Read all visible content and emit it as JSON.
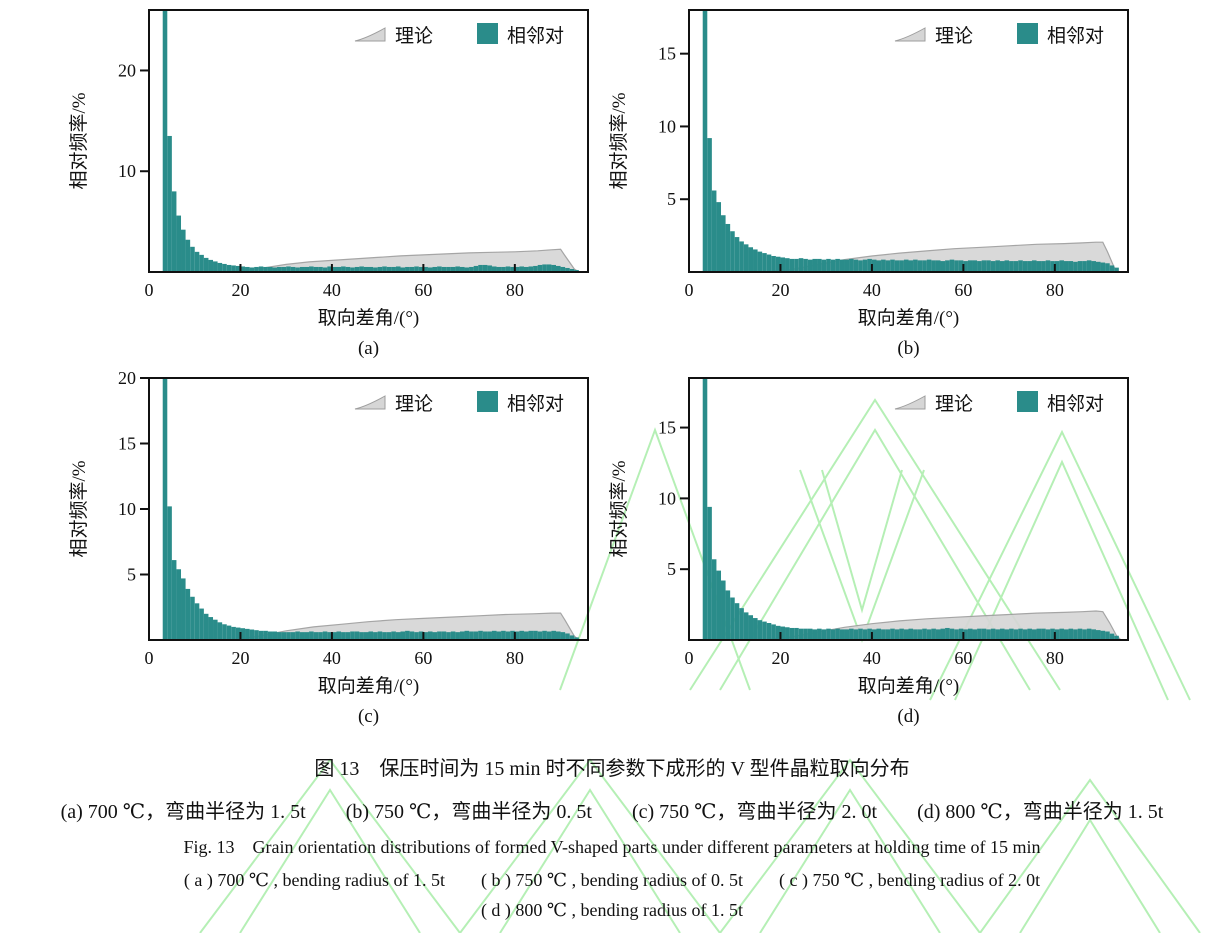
{
  "figure": {
    "caption_cn_title": "图 13　保压时间为 15 min 时不同参数下成形的 V 型件晶粒取向分布",
    "caption_cn_sub": "(a) 700 ℃，弯曲半径为 1. 5t　　(b) 750 ℃，弯曲半径为 0. 5t　　(c) 750 ℃，弯曲半径为 2. 0t　　(d) 800 ℃，弯曲半径为 1. 5t",
    "caption_en_title": "Fig. 13　Grain orientation distributions of formed V-shaped parts under different parameters at holding time of 15 min",
    "caption_en_sub1": "( a )  700 ℃ , bending radius of 1. 5t　　( b )  750 ℃ , bending radius of 0. 5t　　( c )  750 ℃ , bending radius of 2. 0t",
    "caption_en_sub2": "( d )  800 ℃ , bending radius of 1. 5t"
  },
  "colors": {
    "bar": "#2a8c8a",
    "theory_fill": "#d6d6d6",
    "theory_stroke": "#9e9e9e",
    "axis": "#111111",
    "watermark": "#a9eda9"
  },
  "chart_data": [
    {
      "id": "a",
      "label": "(a)",
      "type": "bar",
      "xlabel": "取向差角/(°)",
      "ylabel": "相对频率/%",
      "legend": [
        "理论",
        "相邻对"
      ],
      "xlim": [
        0,
        96
      ],
      "ylim": [
        0,
        26
      ],
      "xticks": [
        0,
        20,
        40,
        60,
        80
      ],
      "yticks": [
        10,
        20
      ],
      "bin_start": 3,
      "bin_width": 1,
      "bars": [
        26,
        13.5,
        8.0,
        5.6,
        4.2,
        3.2,
        2.5,
        2.0,
        1.7,
        1.4,
        1.2,
        1.05,
        0.9,
        0.8,
        0.7,
        0.65,
        0.6,
        0.55,
        0.5,
        0.45,
        0.5,
        0.55,
        0.5,
        0.5,
        0.45,
        0.5,
        0.5,
        0.55,
        0.5,
        0.45,
        0.5,
        0.5,
        0.55,
        0.5,
        0.5,
        0.45,
        0.55,
        0.5,
        0.5,
        0.55,
        0.5,
        0.45,
        0.5,
        0.55,
        0.5,
        0.5,
        0.45,
        0.5,
        0.55,
        0.5,
        0.5,
        0.55,
        0.45,
        0.5,
        0.5,
        0.55,
        0.5,
        0.5,
        0.45,
        0.5,
        0.55,
        0.5,
        0.5,
        0.5,
        0.55,
        0.5,
        0.45,
        0.5,
        0.6,
        0.7,
        0.7,
        0.65,
        0.55,
        0.5,
        0.5,
        0.55,
        0.5,
        0.5,
        0.55,
        0.5,
        0.55,
        0.6,
        0.7,
        0.75,
        0.75,
        0.7,
        0.6,
        0.5,
        0.4,
        0.3,
        0.2
      ],
      "theory": [
        [
          14,
          0
        ],
        [
          20,
          0.12
        ],
        [
          25,
          0.4
        ],
        [
          30,
          0.75
        ],
        [
          35,
          1.0
        ],
        [
          40,
          1.15
        ],
        [
          45,
          1.3
        ],
        [
          50,
          1.45
        ],
        [
          55,
          1.6
        ],
        [
          60,
          1.7
        ],
        [
          65,
          1.8
        ],
        [
          70,
          1.9
        ],
        [
          75,
          1.95
        ],
        [
          80,
          2.0
        ],
        [
          85,
          2.1
        ],
        [
          88,
          2.2
        ],
        [
          90,
          2.25
        ],
        [
          91,
          1.6
        ],
        [
          93,
          0.3
        ],
        [
          94,
          0
        ]
      ]
    },
    {
      "id": "b",
      "label": "(b)",
      "type": "bar",
      "xlabel": "取向差角/(°)",
      "ylabel": "相对频率/%",
      "legend": [
        "理论",
        "相邻对"
      ],
      "xlim": [
        0,
        96
      ],
      "ylim": [
        0,
        18
      ],
      "xticks": [
        0,
        20,
        40,
        60,
        80
      ],
      "yticks": [
        5,
        10,
        15
      ],
      "bin_start": 3,
      "bin_width": 1,
      "bars": [
        18,
        9.2,
        5.6,
        4.8,
        3.9,
        3.3,
        2.8,
        2.4,
        2.1,
        1.9,
        1.7,
        1.55,
        1.4,
        1.3,
        1.2,
        1.1,
        1.05,
        1.0,
        0.95,
        0.9,
        0.9,
        0.95,
        0.9,
        0.85,
        0.9,
        0.9,
        0.85,
        0.9,
        0.85,
        0.9,
        0.85,
        0.85,
        0.9,
        0.85,
        0.8,
        0.85,
        0.9,
        0.85,
        0.8,
        0.85,
        0.8,
        0.85,
        0.8,
        0.8,
        0.85,
        0.8,
        0.85,
        0.8,
        0.8,
        0.85,
        0.8,
        0.8,
        0.75,
        0.8,
        0.85,
        0.8,
        0.8,
        0.75,
        0.8,
        0.8,
        0.75,
        0.8,
        0.8,
        0.75,
        0.8,
        0.75,
        0.8,
        0.75,
        0.75,
        0.8,
        0.75,
        0.75,
        0.8,
        0.75,
        0.75,
        0.8,
        0.75,
        0.75,
        0.8,
        0.75,
        0.75,
        0.7,
        0.75,
        0.75,
        0.8,
        0.75,
        0.7,
        0.65,
        0.6,
        0.45,
        0.3
      ],
      "theory": [
        [
          16,
          0
        ],
        [
          22,
          0.15
        ],
        [
          28,
          0.5
        ],
        [
          34,
          0.85
        ],
        [
          40,
          1.1
        ],
        [
          46,
          1.3
        ],
        [
          52,
          1.45
        ],
        [
          58,
          1.6
        ],
        [
          64,
          1.7
        ],
        [
          70,
          1.8
        ],
        [
          76,
          1.9
        ],
        [
          82,
          1.95
        ],
        [
          86,
          2.0
        ],
        [
          89,
          2.05
        ],
        [
          90.5,
          2.05
        ],
        [
          91.5,
          1.4
        ],
        [
          93,
          0.3
        ],
        [
          94,
          0
        ]
      ]
    },
    {
      "id": "c",
      "label": "(c)",
      "type": "bar",
      "xlabel": "取向差角/(°)",
      "ylabel": "相对频率/%",
      "legend": [
        "理论",
        "相邻对"
      ],
      "xlim": [
        0,
        96
      ],
      "ylim": [
        0,
        20
      ],
      "xticks": [
        0,
        20,
        40,
        60,
        80
      ],
      "yticks": [
        5,
        10,
        15,
        20
      ],
      "bin_start": 3,
      "bin_width": 1,
      "bars": [
        21,
        10.2,
        6.1,
        5.4,
        4.7,
        3.9,
        3.3,
        2.8,
        2.4,
        2.0,
        1.75,
        1.55,
        1.35,
        1.2,
        1.1,
        1.0,
        0.95,
        0.9,
        0.85,
        0.8,
        0.75,
        0.7,
        0.7,
        0.65,
        0.65,
        0.6,
        0.6,
        0.6,
        0.6,
        0.65,
        0.6,
        0.6,
        0.65,
        0.6,
        0.6,
        0.65,
        0.6,
        0.6,
        0.65,
        0.6,
        0.6,
        0.65,
        0.65,
        0.6,
        0.6,
        0.65,
        0.6,
        0.65,
        0.6,
        0.6,
        0.65,
        0.6,
        0.65,
        0.7,
        0.65,
        0.6,
        0.65,
        0.6,
        0.65,
        0.6,
        0.65,
        0.65,
        0.6,
        0.65,
        0.6,
        0.65,
        0.7,
        0.65,
        0.65,
        0.7,
        0.65,
        0.65,
        0.7,
        0.65,
        0.7,
        0.65,
        0.7,
        0.65,
        0.7,
        0.65,
        0.7,
        0.7,
        0.65,
        0.7,
        0.65,
        0.7,
        0.65,
        0.6,
        0.5,
        0.35,
        0.2
      ],
      "theory": [
        [
          18,
          0
        ],
        [
          24,
          0.3
        ],
        [
          30,
          0.7
        ],
        [
          36,
          1.0
        ],
        [
          42,
          1.2
        ],
        [
          48,
          1.4
        ],
        [
          54,
          1.55
        ],
        [
          60,
          1.65
        ],
        [
          66,
          1.75
        ],
        [
          72,
          1.85
        ],
        [
          78,
          1.95
        ],
        [
          84,
          2.0
        ],
        [
          88,
          2.05
        ],
        [
          90,
          2.05
        ],
        [
          91,
          1.5
        ],
        [
          93,
          0.3
        ],
        [
          94,
          0
        ]
      ]
    },
    {
      "id": "d",
      "label": "(d)",
      "type": "bar",
      "xlabel": "取向差角/(°)",
      "ylabel": "相对频率/%",
      "legend": [
        "理论",
        "相邻对"
      ],
      "xlim": [
        0,
        96
      ],
      "ylim": [
        0,
        18.5
      ],
      "xticks": [
        0,
        20,
        40,
        60,
        80
      ],
      "yticks": [
        5,
        10,
        15
      ],
      "bin_start": 3,
      "bin_width": 1,
      "bars": [
        19,
        9.4,
        5.7,
        4.9,
        4.2,
        3.5,
        3.0,
        2.6,
        2.25,
        1.95,
        1.75,
        1.55,
        1.4,
        1.3,
        1.2,
        1.1,
        1.0,
        0.95,
        0.9,
        0.85,
        0.85,
        0.8,
        0.8,
        0.8,
        0.75,
        0.8,
        0.75,
        0.8,
        0.75,
        0.8,
        0.75,
        0.75,
        0.8,
        0.75,
        0.8,
        0.75,
        0.8,
        0.75,
        0.8,
        0.75,
        0.75,
        0.8,
        0.75,
        0.8,
        0.75,
        0.8,
        0.75,
        0.75,
        0.8,
        0.75,
        0.8,
        0.75,
        0.8,
        0.85,
        0.8,
        0.75,
        0.8,
        0.75,
        0.8,
        0.75,
        0.8,
        0.8,
        0.75,
        0.8,
        0.75,
        0.8,
        0.75,
        0.8,
        0.75,
        0.8,
        0.75,
        0.8,
        0.75,
        0.8,
        0.8,
        0.75,
        0.8,
        0.75,
        0.8,
        0.75,
        0.8,
        0.75,
        0.8,
        0.75,
        0.8,
        0.75,
        0.7,
        0.65,
        0.6,
        0.45,
        0.3
      ],
      "theory": [
        [
          16,
          0
        ],
        [
          22,
          0.2
        ],
        [
          28,
          0.55
        ],
        [
          34,
          0.9
        ],
        [
          40,
          1.15
        ],
        [
          46,
          1.35
        ],
        [
          52,
          1.5
        ],
        [
          58,
          1.6
        ],
        [
          64,
          1.7
        ],
        [
          70,
          1.8
        ],
        [
          76,
          1.9
        ],
        [
          82,
          1.95
        ],
        [
          86,
          2.0
        ],
        [
          89,
          2.05
        ],
        [
          90.5,
          2.0
        ],
        [
          92,
          1.2
        ],
        [
          93.5,
          0.3
        ],
        [
          94.5,
          0
        ]
      ]
    }
  ]
}
